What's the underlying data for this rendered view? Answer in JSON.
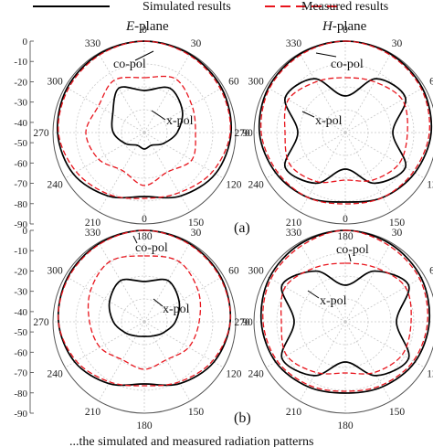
{
  "legend": {
    "simulated": "Simulated results",
    "measured": "Measured results",
    "simulated_color": "#000000",
    "measured_color": "#e8141c"
  },
  "titles": {
    "e_letter": "E",
    "e_rest": "-plane",
    "h_letter": "H",
    "h_rest": "-plane"
  },
  "panel_labels": {
    "a": "(a)",
    "b": "(b)"
  },
  "caption_fragment": "...the simulated and measured radiation patterns",
  "chart_data": [
    {
      "type": "polar-line",
      "panel": "(a)",
      "title": "E-plane",
      "angle_ticks": [
        "0",
        "30",
        "60",
        "90",
        "120",
        "150",
        "180",
        "210",
        "240",
        "270",
        "300",
        "330"
      ],
      "radial_ticks": [
        "0",
        "-10",
        "-20",
        "-30",
        "-40",
        "-50",
        "-60",
        "-70",
        "-80",
        "-90"
      ],
      "r_range_dB": [
        -50,
        0
      ],
      "annotations": [
        "co-pol",
        "x-pol"
      ],
      "series": [
        {
          "name": "Simulated results",
          "pol": "co-pol",
          "style": "solid",
          "theta_deg": [
            0,
            30,
            60,
            90,
            120,
            150,
            180,
            210,
            240,
            270,
            300,
            330,
            360
          ],
          "gain_dB": [
            0,
            -0.5,
            -1.2,
            -2.5,
            -5,
            -10,
            -15,
            -10,
            -5,
            -2.5,
            -1.2,
            -0.5,
            0
          ]
        },
        {
          "name": "Measured results",
          "pol": "co-pol",
          "style": "dashed",
          "theta_deg": [
            0,
            30,
            60,
            90,
            120,
            150,
            180,
            210,
            240,
            270,
            300,
            330,
            360
          ],
          "gain_dB": [
            0,
            -1,
            -2,
            -3,
            -7,
            -12,
            -14,
            -11,
            -7,
            -3,
            -2,
            -1,
            0
          ]
        },
        {
          "name": "Simulated results",
          "pol": "x-pol",
          "style": "solid",
          "theta_deg": [
            0,
            30,
            60,
            90,
            120,
            150,
            180,
            210,
            240,
            270,
            300,
            330,
            360
          ],
          "gain_dB": [
            -27,
            -22,
            -26,
            -32,
            -38,
            -42,
            -41,
            -42,
            -38,
            -33,
            -30,
            -22,
            -27
          ]
        },
        {
          "name": "Measured results",
          "pol": "x-pol",
          "style": "dashed",
          "theta_deg": [
            0,
            30,
            60,
            90,
            120,
            150,
            180,
            210,
            240,
            270,
            300,
            330,
            360
          ],
          "gain_dB": [
            -20,
            -16,
            -20,
            -22,
            -20,
            -25,
            -21,
            -26,
            -21,
            -18,
            -21,
            -17,
            -20
          ]
        }
      ]
    },
    {
      "type": "polar-line",
      "panel": "(a)",
      "title": "H-plane",
      "angle_ticks": [
        "0",
        "30",
        "60",
        "90",
        "120",
        "150",
        "180",
        "210",
        "240",
        "270",
        "300",
        "330"
      ],
      "r_range_dB": [
        -50,
        0
      ],
      "annotations": [
        "co-pol",
        "x-pol"
      ],
      "series": [
        {
          "name": "Simulated results",
          "pol": "co-pol",
          "style": "solid",
          "theta_deg": [
            0,
            30,
            60,
            90,
            120,
            150,
            180,
            210,
            240,
            270,
            300,
            330,
            360
          ],
          "gain_dB": [
            0,
            -0.4,
            -1.3,
            -3,
            -6,
            -9,
            -12,
            -9,
            -6,
            -3,
            -1.3,
            -0.4,
            0
          ]
        },
        {
          "name": "Measured results",
          "pol": "co-pol",
          "style": "dashed",
          "theta_deg": [
            0,
            30,
            60,
            90,
            120,
            150,
            180,
            210,
            240,
            270,
            300,
            330,
            360
          ],
          "gain_dB": [
            0,
            -1,
            -2,
            -4,
            -7,
            -9,
            -11,
            -9,
            -7,
            -4,
            -2,
            -1,
            0
          ]
        },
        {
          "name": "Simulated results",
          "pol": "x-pol",
          "style": "solid",
          "theta_deg": [
            0,
            30,
            60,
            90,
            120,
            150,
            180,
            210,
            240,
            270,
            300,
            330,
            360
          ],
          "gain_dB": [
            -30,
            -16,
            -12,
            -24,
            -12,
            -18,
            -30,
            -18,
            -12,
            -24,
            -12,
            -16,
            -30
          ]
        },
        {
          "name": "Measured results",
          "pol": "x-pol",
          "style": "dashed",
          "theta_deg": [
            0,
            30,
            60,
            90,
            120,
            150,
            180,
            210,
            240,
            270,
            300,
            330,
            360
          ],
          "gain_dB": [
            -20,
            -18,
            -14,
            -16,
            -16,
            -20,
            -24,
            -19,
            -15,
            -17,
            -14,
            -18,
            -20
          ]
        }
      ]
    },
    {
      "type": "polar-line",
      "panel": "(b)",
      "title": "E-plane",
      "angle_ticks": [
        "0",
        "30",
        "60",
        "90",
        "120",
        "150",
        "180",
        "210",
        "240",
        "270",
        "300",
        "330"
      ],
      "radial_ticks": [
        "0",
        "-10",
        "-20",
        "-30",
        "-40",
        "-50",
        "-60",
        "-70",
        "-80",
        "-90"
      ],
      "r_range_dB": [
        -50,
        0
      ],
      "annotations": [
        "co-pol",
        "x-pol"
      ],
      "series": [
        {
          "name": "Simulated results",
          "pol": "co-pol",
          "style": "solid",
          "theta_deg": [
            0,
            30,
            60,
            90,
            120,
            150,
            180,
            210,
            240,
            270,
            300,
            330,
            360
          ],
          "gain_dB": [
            0,
            -0.6,
            -1.5,
            -3,
            -6,
            -11,
            -16,
            -11,
            -6,
            -3,
            -1.5,
            -0.6,
            0
          ]
        },
        {
          "name": "Measured results",
          "pol": "co-pol",
          "style": "dashed",
          "theta_deg": [
            0,
            30,
            60,
            90,
            120,
            150,
            180,
            210,
            240,
            270,
            300,
            330,
            360
          ],
          "gain_dB": [
            0,
            -1,
            -2,
            -3,
            -7,
            -12,
            -15,
            -12,
            -7,
            -3,
            -2,
            -1,
            0
          ]
        },
        {
          "name": "Simulated results",
          "pol": "x-pol",
          "style": "solid",
          "theta_deg": [
            0,
            30,
            60,
            90,
            120,
            150,
            180,
            210,
            240,
            270,
            300,
            330,
            360
          ],
          "gain_dB": [
            -28,
            -24,
            -28,
            -33,
            -38,
            -41,
            -42,
            -41,
            -38,
            -33,
            -28,
            -24,
            -28
          ]
        },
        {
          "name": "Measured results",
          "pol": "x-pol",
          "style": "dashed",
          "theta_deg": [
            0,
            30,
            60,
            90,
            120,
            150,
            180,
            210,
            240,
            270,
            300,
            330,
            360
          ],
          "gain_dB": [
            -14,
            -12,
            -16,
            -20,
            -22,
            -26,
            -24,
            -26,
            -22,
            -20,
            -16,
            -12,
            -14
          ]
        }
      ]
    },
    {
      "type": "polar-line",
      "panel": "(b)",
      "title": "H-plane",
      "angle_ticks": [
        "0",
        "30",
        "60",
        "90",
        "120",
        "150",
        "180",
        "210",
        "240",
        "270",
        "300",
        "330"
      ],
      "r_range_dB": [
        -50,
        0
      ],
      "annotations": [
        "co-pol",
        "x-pol"
      ],
      "series": [
        {
          "name": "Simulated results",
          "pol": "co-pol",
          "style": "solid",
          "theta_deg": [
            0,
            30,
            60,
            90,
            120,
            150,
            180,
            210,
            240,
            270,
            300,
            330,
            360
          ],
          "gain_dB": [
            0,
            -0.8,
            -2,
            -4,
            -6,
            -9,
            -11,
            -9,
            -6,
            -4,
            -2,
            -0.8,
            0
          ]
        },
        {
          "name": "Measured results",
          "pol": "co-pol",
          "style": "dashed",
          "theta_deg": [
            0,
            30,
            60,
            90,
            120,
            150,
            180,
            210,
            240,
            270,
            300,
            330,
            360
          ],
          "gain_dB": [
            0,
            -2,
            -3,
            -5,
            -7,
            -10,
            -12,
            -10,
            -7,
            -5,
            -3,
            -2,
            0
          ]
        },
        {
          "name": "Simulated results",
          "pol": "x-pol",
          "style": "solid",
          "theta_deg": [
            0,
            30,
            60,
            90,
            120,
            150,
            180,
            210,
            240,
            270,
            300,
            330,
            360
          ],
          "gain_dB": [
            -30,
            -18,
            -10,
            -22,
            -10,
            -16,
            -28,
            -16,
            -10,
            -22,
            -10,
            -18,
            -30
          ]
        },
        {
          "name": "Measured results",
          "pol": "x-pol",
          "style": "dashed",
          "theta_deg": [
            0,
            30,
            60,
            90,
            120,
            150,
            180,
            210,
            240,
            270,
            300,
            330,
            360
          ],
          "gain_dB": [
            -18,
            -16,
            -12,
            -14,
            -14,
            -18,
            -22,
            -18,
            -13,
            -15,
            -12,
            -16,
            -18
          ]
        }
      ]
    }
  ]
}
